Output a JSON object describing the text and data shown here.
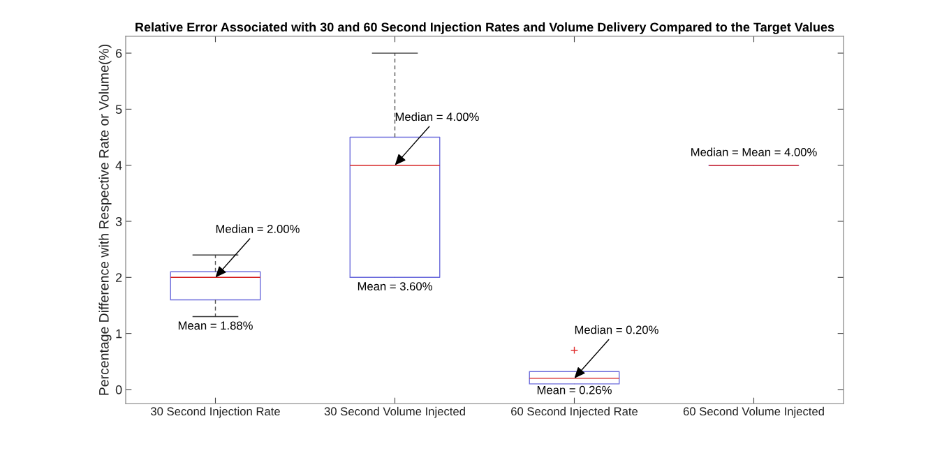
{
  "chart_data": {
    "type": "box",
    "title": "Relative Error Associated with 30 and 60 Second Injection Rates and Volume Delivery Compared to the Target Values",
    "ylabel": "Percentage Difference with Respective Rate or Volume(%)",
    "categories": [
      "30 Second Injection Rate",
      "30 Second Volume Injected",
      "60 Second Injected Rate",
      "60 Second Volume Injected"
    ],
    "series": [
      {
        "color": "#6b6bdc",
        "boxes": [
          {
            "low": 1.3,
            "q1": 1.6,
            "median": 2.0,
            "q3": 2.1,
            "high": 2.4
          },
          {
            "low": 2.0,
            "q1": 2.0,
            "median": 4.0,
            "q3": 4.5,
            "high": 6.0
          },
          {
            "low": 0.1,
            "q1": 0.1,
            "median": 0.2,
            "q3": 0.32,
            "high": 0.32,
            "outliers": [
              0.7
            ]
          },
          {
            "low": 4.0,
            "q1": 4.0,
            "median": 4.0,
            "q3": 4.0,
            "high": 4.0
          }
        ]
      }
    ],
    "ylim": [
      -0.25,
      6.3
    ],
    "yticks": [
      0,
      1,
      2,
      3,
      4,
      5,
      6
    ],
    "grid": false,
    "annotations": [
      {
        "text": "Median = 2.00%",
        "x": "30 Second Injection Rate",
        "y": 2.0
      },
      {
        "text": "Mean = 1.88%",
        "x": "30 Second Injection Rate",
        "y": 1.3
      },
      {
        "text": "Median = 4.00%",
        "x": "30 Second Volume Injected",
        "y": 4.0
      },
      {
        "text": "Mean = 3.60%",
        "x": "30 Second Volume Injected",
        "y": 2.0
      },
      {
        "text": "Median = 0.20%",
        "x": "60 Second Injected Rate",
        "y": 0.2
      },
      {
        "text": "Mean = 0.26%",
        "x": "60 Second Injected Rate",
        "y": 0.1
      },
      {
        "text": "Median = Mean = 4.00%",
        "x": "60 Second Volume Injected",
        "y": 4.0
      }
    ]
  }
}
